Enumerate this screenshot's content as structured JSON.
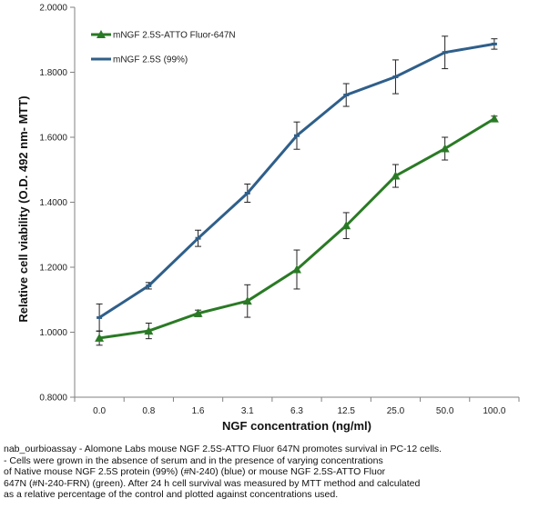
{
  "chart_data": {
    "type": "line",
    "categories": [
      "0.0",
      "0.8",
      "1.6",
      "3.1",
      "6.3",
      "12.5",
      "25.0",
      "50.0",
      "100.0"
    ],
    "xlabel": "NGF concentration  (ng/ml)",
    "ylabel": "Relative cell viability (O.D. 492 nm- MTT)",
    "ylim": [
      0.8,
      2.0
    ],
    "yticks": [
      "0.8000",
      "1.0000",
      "1.2000",
      "1.4000",
      "1.6000",
      "1.8000",
      "2.0000"
    ],
    "grid": false,
    "legend_position": "top-left",
    "series": [
      {
        "name": "mNGF 2.5S-ATTO Fluor-647N",
        "color": "#2a7a25",
        "marker": "triangle",
        "values": [
          0.982,
          1.004,
          1.058,
          1.096,
          1.193,
          1.328,
          1.481,
          1.565,
          1.657
        ],
        "errors": [
          0.022,
          0.024,
          0.01,
          0.05,
          0.06,
          0.04,
          0.035,
          0.035,
          0.008
        ]
      },
      {
        "name": "mNGF 2.5S (99%)",
        "color": "#2f5f8a",
        "marker": "dash",
        "values": [
          1.045,
          1.143,
          1.289,
          1.428,
          1.605,
          1.73,
          1.786,
          1.861,
          1.887
        ],
        "errors": [
          0.042,
          0.01,
          0.025,
          0.028,
          0.042,
          0.035,
          0.052,
          0.05,
          0.016
        ]
      }
    ]
  },
  "caption": {
    "lines": [
      "nab_ourbioassay - Alomone Labs mouse NGF 2.5S-ATTO Fluor 647N promotes survival in PC-12 cells.",
      "- Cells were grown in the absence of serum and in the presence of varying concentrations",
      "of Native mouse NGF 2.5S protein (99%) (#N-240) (blue) or mouse NGF 2.5S-ATTO Fluor",
      "647N (#N-240-FRN) (green). After 24 h cell survival was measured by MTT method and calculated",
      "as a relative percentage of the control and plotted against concentrations used."
    ]
  }
}
